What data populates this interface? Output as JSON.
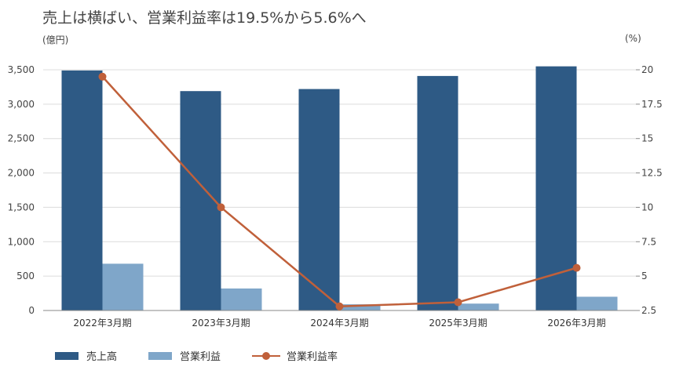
{
  "title": "売上は横ばい、営業利益率は19.5%から5.6%へ",
  "chart_data": {
    "type": "bar",
    "categories": [
      "2022年3月期",
      "2023年3月期",
      "2024年3月期",
      "2025年3月期",
      "2026年3月期"
    ],
    "series": [
      {
        "name": "売上高",
        "kind": "bar",
        "axis": "left",
        "color": "#2e5a85",
        "values": [
          3490,
          3190,
          3220,
          3410,
          3550
        ]
      },
      {
        "name": "営業利益",
        "kind": "bar",
        "axis": "left",
        "color": "#7fa6c9",
        "values": [
          680,
          320,
          90,
          100,
          200
        ]
      },
      {
        "name": "営業利益率",
        "kind": "line",
        "axis": "right",
        "color": "#c0603a",
        "values": [
          19.5,
          10.0,
          2.8,
          3.1,
          5.6
        ]
      }
    ],
    "y_left": {
      "unit_label": "(億円)",
      "range": [
        0,
        3500
      ],
      "ticks": [
        "0",
        "500",
        "1,000",
        "1,500",
        "2,000",
        "2,500",
        "3,000",
        "3,500"
      ]
    },
    "y_right": {
      "unit_label": "(%)",
      "range": [
        2.5,
        20
      ],
      "ticks": [
        "2.5",
        "5",
        "7.5",
        "10",
        "12.5",
        "15",
        "17.5",
        "20"
      ]
    },
    "grid": true,
    "legend_position": "bottom-left"
  }
}
